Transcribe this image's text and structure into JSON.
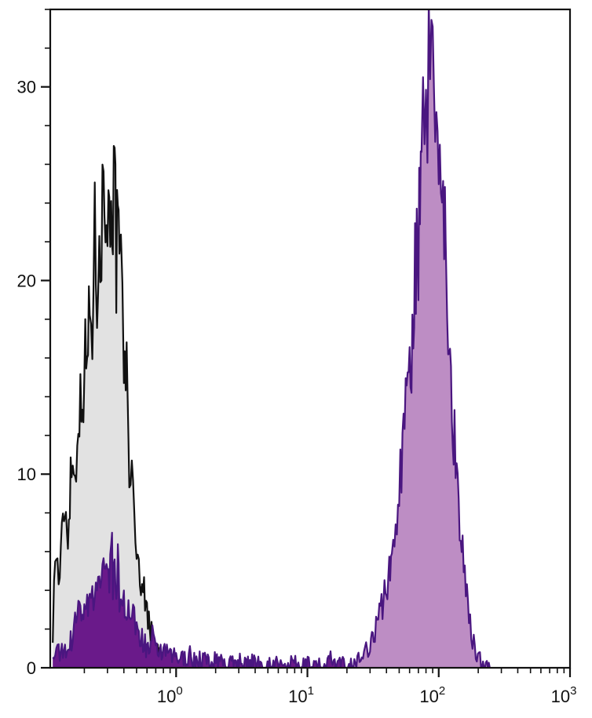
{
  "chart_data": {
    "type": "area",
    "title": "",
    "xlabel": "",
    "ylabel": "",
    "x_scale": "log",
    "xlim": [
      0.11,
      1000
    ],
    "ylim": [
      0,
      34
    ],
    "x_ticks": [
      {
        "value": 1,
        "base": "10",
        "exp": "0"
      },
      {
        "value": 10,
        "base": "10",
        "exp": "1"
      },
      {
        "value": 100,
        "base": "10",
        "exp": "2"
      },
      {
        "value": 1000,
        "base": "10",
        "exp": "3"
      }
    ],
    "y_ticks": [
      {
        "value": 0,
        "label": "0"
      },
      {
        "value": 10,
        "label": "10"
      },
      {
        "value": 20,
        "label": "20"
      },
      {
        "value": 30,
        "label": "30"
      }
    ],
    "grid": false,
    "legend": "none",
    "series": [
      {
        "role": "control",
        "line_color": "#111111",
        "fill_color": "#e2e2e2",
        "points": [
          [
            0.115,
            2.0
          ],
          [
            0.12,
            6.0
          ],
          [
            0.13,
            4.5
          ],
          [
            0.14,
            8.5
          ],
          [
            0.15,
            7.0
          ],
          [
            0.16,
            11.0
          ],
          [
            0.17,
            9.5
          ],
          [
            0.18,
            14.0
          ],
          [
            0.19,
            13.0
          ],
          [
            0.2,
            16.0
          ],
          [
            0.21,
            15.5
          ],
          [
            0.22,
            19.0
          ],
          [
            0.23,
            18.0
          ],
          [
            0.24,
            22.0
          ],
          [
            0.25,
            20.0
          ],
          [
            0.26,
            24.5
          ],
          [
            0.27,
            21.5
          ],
          [
            0.28,
            26.0
          ],
          [
            0.29,
            23.0
          ],
          [
            0.3,
            25.0
          ],
          [
            0.31,
            22.0
          ],
          [
            0.32,
            26.5
          ],
          [
            0.33,
            23.5
          ],
          [
            0.34,
            25.0
          ],
          [
            0.35,
            21.0
          ],
          [
            0.36,
            22.5
          ],
          [
            0.37,
            19.5
          ],
          [
            0.38,
            20.5
          ],
          [
            0.39,
            17.5
          ],
          [
            0.4,
            16.5
          ],
          [
            0.42,
            15.0
          ],
          [
            0.44,
            11.0
          ],
          [
            0.46,
            9.5
          ],
          [
            0.48,
            7.5
          ],
          [
            0.5,
            6.5
          ],
          [
            0.52,
            5.0
          ],
          [
            0.55,
            4.5
          ],
          [
            0.58,
            3.5
          ],
          [
            0.6,
            3.0
          ],
          [
            0.63,
            2.2
          ],
          [
            0.66,
            1.5
          ],
          [
            0.7,
            1.0
          ],
          [
            0.75,
            0.6
          ],
          [
            0.8,
            0.3
          ],
          [
            0.9,
            0.1
          ],
          [
            1.0,
            0.0
          ]
        ]
      },
      {
        "role": "stained-low",
        "line_color": "#4a1680",
        "fill_color": "#6a1a8a",
        "points": [
          [
            0.115,
            0.4
          ],
          [
            0.12,
            1.0
          ],
          [
            0.13,
            0.6
          ],
          [
            0.14,
            1.2
          ],
          [
            0.15,
            0.8
          ],
          [
            0.16,
            1.5
          ],
          [
            0.17,
            2.2
          ],
          [
            0.18,
            3.2
          ],
          [
            0.19,
            2.5
          ],
          [
            0.2,
            3.8
          ],
          [
            0.21,
            3.0
          ],
          [
            0.22,
            4.5
          ],
          [
            0.23,
            3.5
          ],
          [
            0.24,
            4.2
          ],
          [
            0.25,
            3.6
          ],
          [
            0.26,
            4.8
          ],
          [
            0.27,
            4.0
          ],
          [
            0.28,
            5.0
          ],
          [
            0.29,
            4.3
          ],
          [
            0.3,
            4.6
          ],
          [
            0.31,
            4.0
          ],
          [
            0.32,
            7.5
          ],
          [
            0.33,
            4.2
          ],
          [
            0.34,
            4.8
          ],
          [
            0.35,
            3.8
          ],
          [
            0.36,
            5.5
          ],
          [
            0.37,
            3.5
          ],
          [
            0.38,
            4.0
          ],
          [
            0.39,
            3.2
          ],
          [
            0.4,
            3.6
          ],
          [
            0.42,
            2.8
          ],
          [
            0.44,
            3.0
          ],
          [
            0.46,
            2.4
          ],
          [
            0.48,
            2.6
          ],
          [
            0.5,
            2.0
          ],
          [
            0.52,
            1.8
          ],
          [
            0.55,
            1.5
          ],
          [
            0.58,
            1.2
          ],
          [
            0.6,
            1.0
          ],
          [
            0.63,
            0.9
          ],
          [
            0.66,
            1.6
          ],
          [
            0.7,
            0.7
          ],
          [
            0.75,
            1.0
          ],
          [
            0.8,
            0.6
          ],
          [
            0.85,
            0.9
          ],
          [
            0.9,
            0.5
          ],
          [
            1.0,
            0.6
          ],
          [
            1.1,
            0.4
          ],
          [
            1.25,
            0.7
          ],
          [
            1.4,
            0.3
          ],
          [
            1.6,
            0.5
          ],
          [
            1.8,
            0.2
          ],
          [
            2.2,
            0.5
          ],
          [
            2.5,
            0.1
          ],
          [
            2.9,
            0.4
          ],
          [
            3.4,
            0.1
          ],
          [
            4.0,
            0.3
          ],
          [
            4.8,
            0.0
          ],
          [
            5.6,
            0.3
          ],
          [
            6.5,
            0.0
          ],
          [
            7.8,
            0.2
          ],
          [
            9.0,
            0.0
          ],
          [
            11.0,
            0.3
          ],
          [
            13.0,
            0.0
          ],
          [
            15.0,
            0.4
          ],
          [
            17.0,
            0.1
          ],
          [
            20.0,
            0.2
          ],
          [
            23.0,
            0.0
          ]
        ]
      },
      {
        "role": "stained-high",
        "line_color": "#4a1680",
        "fill_color": "#bd8dc4",
        "points": [
          [
            22.0,
            0.0
          ],
          [
            24.0,
            0.3
          ],
          [
            26.0,
            0.6
          ],
          [
            28.0,
            0.9
          ],
          [
            30.0,
            1.3
          ],
          [
            32.0,
            1.8
          ],
          [
            34.0,
            2.3
          ],
          [
            36.0,
            2.9
          ],
          [
            38.0,
            3.6
          ],
          [
            40.0,
            4.2
          ],
          [
            42.0,
            4.8
          ],
          [
            44.0,
            5.8
          ],
          [
            46.0,
            6.8
          ],
          [
            48.0,
            8.0
          ],
          [
            50.0,
            9.5
          ],
          [
            52.0,
            10.5
          ],
          [
            54.0,
            12.0
          ],
          [
            56.0,
            13.5
          ],
          [
            58.0,
            15.0
          ],
          [
            60.0,
            17.5
          ],
          [
            62.0,
            16.5
          ],
          [
            64.0,
            19.0
          ],
          [
            66.0,
            20.5
          ],
          [
            68.0,
            22.5
          ],
          [
            70.0,
            21.5
          ],
          [
            72.0,
            23.5
          ],
          [
            74.0,
            24.5
          ],
          [
            76.0,
            27.0
          ],
          [
            78.0,
            26.0
          ],
          [
            80.0,
            29.0
          ],
          [
            82.0,
            28.0
          ],
          [
            84.0,
            31.0
          ],
          [
            86.0,
            29.5
          ],
          [
            88.0,
            33.5
          ],
          [
            90.0,
            31.5
          ],
          [
            92.0,
            33.0
          ],
          [
            94.0,
            30.5
          ],
          [
            96.0,
            29.5
          ],
          [
            98.0,
            27.5
          ],
          [
            100.0,
            26.0
          ],
          [
            102.0,
            27.0
          ],
          [
            104.0,
            24.0
          ],
          [
            106.0,
            25.5
          ],
          [
            108.0,
            23.0
          ],
          [
            110.0,
            24.5
          ],
          [
            113.0,
            21.0
          ],
          [
            116.0,
            19.0
          ],
          [
            120.0,
            18.0
          ],
          [
            124.0,
            15.0
          ],
          [
            128.0,
            13.0
          ],
          [
            132.0,
            11.5
          ],
          [
            137.0,
            10.0
          ],
          [
            142.0,
            8.5
          ],
          [
            147.0,
            7.5
          ],
          [
            152.0,
            6.0
          ],
          [
            158.0,
            4.5
          ],
          [
            164.0,
            3.5
          ],
          [
            170.0,
            2.5
          ],
          [
            177.0,
            1.8
          ],
          [
            185.0,
            1.2
          ],
          [
            195.0,
            0.7
          ],
          [
            210.0,
            0.4
          ],
          [
            225.0,
            0.2
          ],
          [
            245.0,
            0.0
          ]
        ]
      }
    ]
  }
}
